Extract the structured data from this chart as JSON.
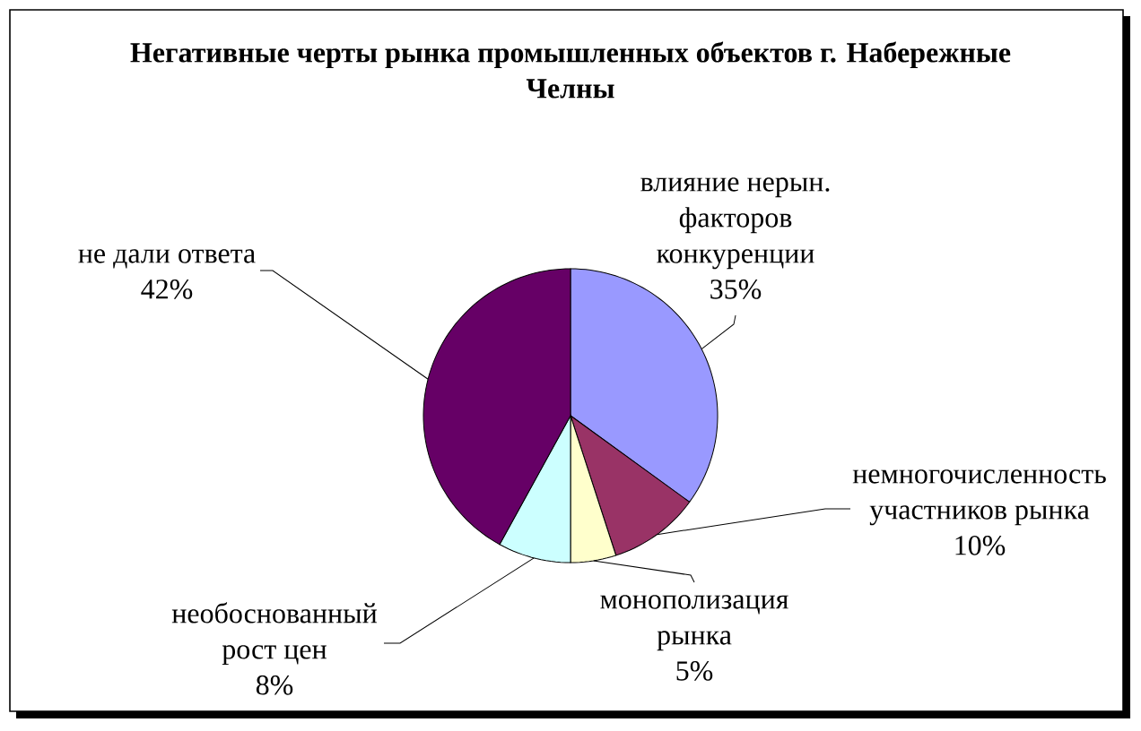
{
  "chart_data": {
    "type": "pie",
    "title": "Негативные черты рынка промышленных объектов г. Набережные Челны",
    "categories": [
      "влияние нерын. факторов конкуренции",
      "немногочисленность участников рынка",
      "монополизация рынка",
      "необоснованный рост цен",
      "не дали ответа"
    ],
    "values": [
      35,
      10,
      5,
      8,
      42
    ],
    "colors": [
      "#9999ff",
      "#993366",
      "#ffffcc",
      "#ccffff",
      "#660066"
    ],
    "value_labels": [
      "35%",
      "10%",
      "5%",
      "8%",
      "42%"
    ]
  }
}
